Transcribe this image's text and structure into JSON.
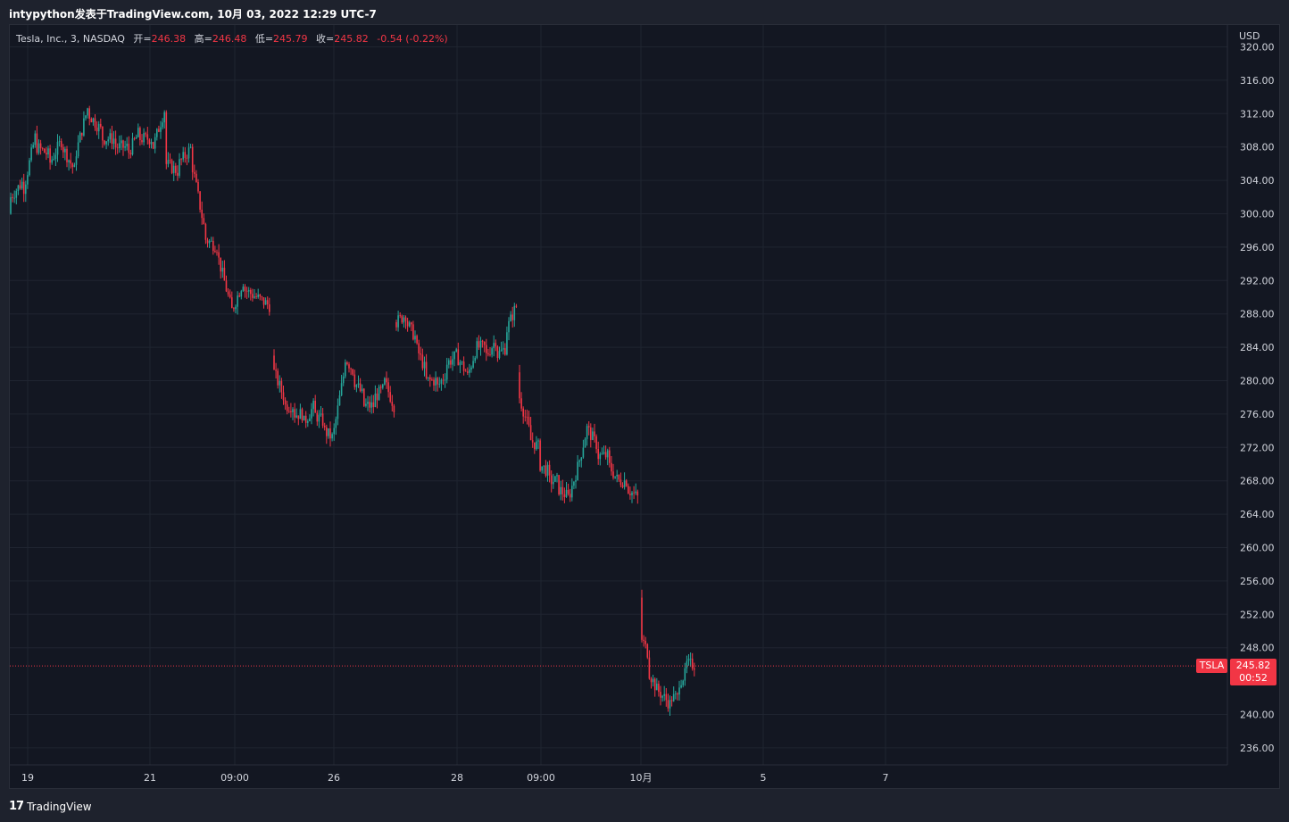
{
  "header": {
    "title": "intypython发表于TradingView.com, 10月 03, 2022 12:29 UTC-7"
  },
  "legend": {
    "symbol": "Tesla, Inc., 3, NASDAQ",
    "open_label": "开=",
    "open": "246.38",
    "high_label": "高=",
    "high": "246.48",
    "low_label": "低=",
    "low": "245.79",
    "close_label": "收=",
    "close": "245.82",
    "change": "-0.54 (-0.22%)"
  },
  "currency": "USD",
  "last_price": {
    "symbol_tag": "TSLA",
    "price": "245.82",
    "countdown": "00:52"
  },
  "footer": {
    "brand": "TradingView"
  },
  "colors": {
    "up": "#26a69a",
    "down": "#f23645",
    "background": "#131722",
    "grid": "#1f2430",
    "text": "#d1d4dc"
  },
  "chart_data": {
    "type": "candlestick",
    "symbol": "TSLA",
    "interval": "3 min",
    "ylim": [
      234,
      320
    ],
    "yticks": [
      "320.00",
      "316.00",
      "312.00",
      "308.00",
      "304.00",
      "300.00",
      "296.00",
      "292.00",
      "288.00",
      "284.00",
      "280.00",
      "276.00",
      "272.00",
      "268.00",
      "264.00",
      "260.00",
      "256.00",
      "252.00",
      "248.00",
      "240.00",
      "236.00"
    ],
    "xticks": [
      "19",
      "21",
      "09:00",
      "26",
      "28",
      "09:00",
      "10月",
      "5",
      "7"
    ],
    "sessions": [
      {
        "path": [
          [
            300,
            302
          ],
          [
            304,
            303
          ],
          [
            310,
            308
          ],
          [
            307,
            306
          ],
          [
            309,
            308
          ],
          [
            305,
            307
          ],
          [
            313,
            312
          ],
          [
            310,
            309
          ],
          [
            309,
            308
          ],
          [
            308,
            307
          ],
          [
            310,
            309
          ],
          [
            309,
            308
          ],
          [
            313,
            306
          ],
          [
            305,
            306
          ],
          [
            308,
            306
          ],
          [
            298,
            297
          ],
          [
            296,
            295
          ],
          [
            289,
            288
          ],
          [
            292,
            291
          ],
          [
            290,
            290
          ],
          [
            289,
            288
          ]
        ]
      },
      {
        "path": [
          [
            283,
            281
          ],
          [
            278,
            277
          ],
          [
            277,
            276
          ],
          [
            276,
            275
          ],
          [
            277,
            276
          ],
          [
            275,
            274
          ],
          [
            273,
            274
          ],
          [
            281,
            283
          ],
          [
            281,
            280
          ],
          [
            278,
            277
          ],
          [
            277,
            278
          ],
          [
            279,
            280
          ],
          [
            277,
            276
          ]
        ]
      },
      {
        "path": [
          [
            287,
            287
          ],
          [
            288,
            287
          ],
          [
            285,
            284
          ],
          [
            281,
            280
          ],
          [
            280,
            279
          ],
          [
            281,
            282
          ],
          [
            283,
            283
          ],
          [
            281,
            280
          ],
          [
            284,
            284
          ],
          [
            284,
            283
          ],
          [
            285,
            283
          ],
          [
            284,
            286
          ],
          [
            289,
            288
          ]
        ]
      },
      {
        "path": [
          [
            281,
            278
          ],
          [
            274,
            273
          ],
          [
            272,
            270
          ],
          [
            269,
            268
          ],
          [
            268,
            267
          ],
          [
            266,
            266
          ],
          [
            270,
            270
          ],
          [
            275,
            274
          ],
          [
            272,
            271
          ],
          [
            271,
            270
          ],
          [
            268,
            268
          ],
          [
            268,
            267
          ],
          [
            266,
            266
          ]
        ]
      },
      {
        "path": [
          [
            254,
            249
          ],
          [
            247,
            245
          ],
          [
            243,
            243
          ],
          [
            242,
            242
          ],
          [
            241,
            242
          ],
          [
            242,
            244
          ],
          [
            245,
            246
          ],
          [
            246,
            246
          ]
        ]
      }
    ],
    "last": 245.82
  }
}
